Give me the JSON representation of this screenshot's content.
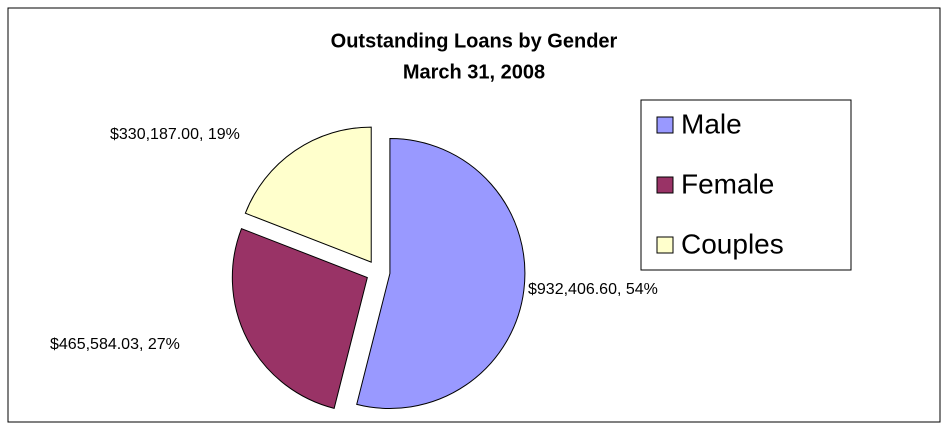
{
  "chart_data": {
    "type": "pie",
    "title": "Outstanding Loans by Gender",
    "subtitle": "March 31, 2008",
    "categories": [
      "Male",
      "Female",
      "Couples"
    ],
    "values": [
      932406.6,
      465584.03,
      330187.0
    ],
    "value_labels": [
      "$932,406.60, 54%",
      "$465,584.03, 27%",
      "$330,187.00, 19%"
    ],
    "colors": [
      "#9999ff",
      "#993366",
      "#ffffcc"
    ],
    "legend": "right"
  }
}
